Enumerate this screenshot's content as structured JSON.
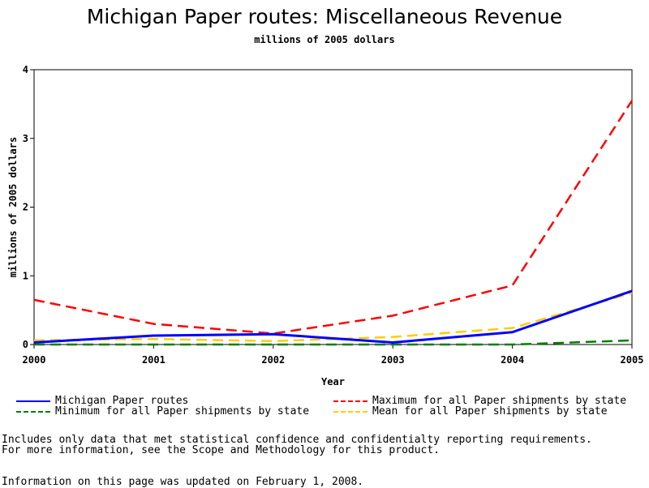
{
  "header": {
    "title": "Michigan Paper routes: Miscellaneous Revenue",
    "subtitle": "millions of 2005 dollars"
  },
  "chart_data": {
    "type": "line",
    "title": "Michigan Paper routes: Miscellaneous Revenue",
    "subtitle": "millions of 2005 dollars",
    "xlabel": "Year",
    "ylabel": "millions of 2005 dollars",
    "x": [
      "2000",
      "2001",
      "2002",
      "2003",
      "2004",
      "2005"
    ],
    "xlim": [
      2000,
      2005
    ],
    "ylim": [
      0,
      4
    ],
    "yticks": [
      "0",
      "1",
      "2",
      "3",
      "4"
    ],
    "grid": false,
    "legend_position": "bottom",
    "series": [
      {
        "name": "Michigan Paper routes",
        "color": "#0000ff",
        "style": "solid",
        "values": [
          0.03,
          0.13,
          0.15,
          0.03,
          0.18,
          0.78
        ]
      },
      {
        "name": "Maximum for all Paper shipments by state",
        "color": "#ff0000",
        "style": "dashed",
        "values": [
          0.65,
          0.3,
          0.16,
          0.42,
          0.86,
          3.55
        ]
      },
      {
        "name": "Minimum for all Paper shipments by state",
        "color": "#007f00",
        "style": "dashed",
        "values": [
          0.0,
          0.0,
          0.0,
          0.0,
          0.0,
          0.06
        ]
      },
      {
        "name": "Mean for all Paper shipments by state",
        "color": "#ffcc00",
        "style": "dashed",
        "values": [
          0.06,
          0.08,
          0.05,
          0.11,
          0.24,
          0.75
        ]
      }
    ]
  },
  "notes": {
    "line1": "Includes only data that met statistical confidence and confidentialty reporting requirements.",
    "line2": "For more information, see the Scope and Methodology for this product.",
    "updated": "Information on this page was updated on February 1, 2008."
  }
}
